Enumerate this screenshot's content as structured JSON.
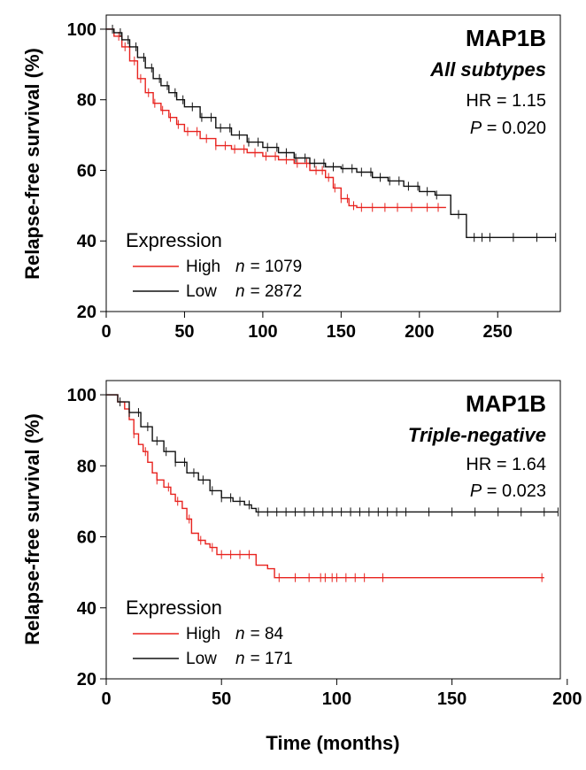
{
  "x_axis_label": "Time (months)",
  "chart_data": [
    {
      "type": "line",
      "gene": "MAP1B",
      "subtype": "All subtypes",
      "hr_label": "HR = 1.15",
      "p_symbol": "P",
      "p_text": " = 0.020",
      "ylabel": "Relapse-free survival (%)",
      "xlabel": "",
      "xlim": [
        0,
        290
      ],
      "ylim": [
        20,
        104
      ],
      "xticks": [
        0,
        50,
        100,
        150,
        200,
        250
      ],
      "xtick_labels": [
        "0",
        "50",
        "100",
        "150",
        "200",
        "250"
      ],
      "yticks": [
        20,
        40,
        60,
        80,
        100
      ],
      "ytick_labels": [
        "20",
        "40",
        "60",
        "80",
        "100"
      ],
      "legend_title": "Expression",
      "legend_position": "bottom-left",
      "series": [
        {
          "name": "High",
          "n_label": "= 1079",
          "color": "#e8231f",
          "x": [
            0,
            5,
            10,
            15,
            20,
            25,
            30,
            35,
            40,
            45,
            50,
            60,
            70,
            80,
            90,
            100,
            110,
            120,
            130,
            140,
            145,
            150,
            155,
            160,
            170,
            180,
            190,
            200,
            210,
            217
          ],
          "y": [
            100,
            98,
            95,
            91,
            86,
            82,
            79,
            77,
            75,
            73,
            71,
            69,
            67,
            66,
            65,
            64,
            63,
            62,
            60,
            58,
            55,
            52,
            50,
            49.5,
            49.5,
            49.5,
            49.5,
            49.5,
            49.5,
            49.5
          ],
          "censor_x": [
            8,
            12,
            18,
            22,
            27,
            31,
            36,
            41,
            46,
            52,
            58,
            64,
            70,
            76,
            82,
            88,
            95,
            102,
            108,
            115,
            122,
            128,
            134,
            138,
            142,
            146,
            150,
            154,
            158,
            163,
            170,
            178,
            186,
            195,
            205,
            212
          ]
        },
        {
          "name": "Low",
          "n_label": "= 2872",
          "color": "#111111",
          "x": [
            0,
            5,
            10,
            15,
            20,
            25,
            30,
            35,
            40,
            45,
            50,
            60,
            70,
            80,
            90,
            100,
            110,
            120,
            130,
            140,
            150,
            160,
            170,
            180,
            190,
            200,
            210,
            217,
            220,
            230,
            240,
            260,
            287
          ],
          "y": [
            100,
            99,
            97,
            95,
            92,
            89,
            86,
            84,
            82,
            80,
            78,
            75,
            72,
            70,
            68,
            66.5,
            65,
            63.5,
            62,
            61,
            60.5,
            59.5,
            58,
            57,
            55.5,
            54,
            53,
            53,
            47.5,
            41,
            41,
            41,
            41
          ],
          "censor_x": [
            4,
            9,
            14,
            19,
            24,
            29,
            34,
            39,
            44,
            49,
            55,
            61,
            67,
            73,
            79,
            85,
            91,
            97,
            103,
            109,
            115,
            121,
            127,
            133,
            139,
            145,
            151,
            157,
            163,
            169,
            175,
            181,
            187,
            193,
            199,
            205,
            211,
            225,
            235,
            240,
            245,
            260,
            275,
            287
          ]
        }
      ]
    },
    {
      "type": "line",
      "gene": "MAP1B",
      "subtype": "Triple-negative",
      "hr_label": "HR = 1.64",
      "p_symbol": "P",
      "p_text": " = 0.023",
      "ylabel": "Relapse-free survival (%)",
      "xlabel": "Time (months)",
      "xlim": [
        0,
        197
      ],
      "ylim": [
        20,
        104
      ],
      "xticks": [
        0,
        50,
        100,
        150,
        200
      ],
      "xtick_labels": [
        "0",
        "50",
        "100",
        "150",
        "200"
      ],
      "yticks": [
        20,
        40,
        60,
        80,
        100
      ],
      "ytick_labels": [
        "20",
        "40",
        "60",
        "80",
        "100"
      ],
      "legend_title": "Expression",
      "legend_position": "bottom-left",
      "series": [
        {
          "name": "High",
          "n_label": "= 84",
          "color": "#e8231f",
          "x": [
            0,
            5,
            8,
            10,
            12,
            14,
            16,
            18,
            20,
            22,
            25,
            28,
            30,
            33,
            35,
            37,
            40,
            43,
            45,
            48,
            50,
            55,
            60,
            65,
            70,
            73,
            75,
            80,
            100,
            150,
            190
          ],
          "y": [
            100,
            98,
            96,
            93,
            89,
            86,
            84,
            81,
            78,
            76,
            74,
            72,
            70,
            68,
            65,
            61,
            59,
            58,
            57,
            55,
            55,
            55,
            55,
            52,
            51,
            48.5,
            48.5,
            48.5,
            48.5,
            48.5,
            48.5
          ],
          "censor_x": [
            12,
            17,
            22,
            27,
            31,
            36,
            41,
            46,
            50,
            54,
            58,
            62,
            75,
            82,
            88,
            93,
            95,
            98,
            100,
            104,
            108,
            112,
            120,
            189
          ]
        },
        {
          "name": "Low",
          "n_label": "= 171",
          "color": "#111111",
          "x": [
            0,
            5,
            10,
            15,
            20,
            25,
            30,
            35,
            40,
            45,
            50,
            55,
            60,
            63,
            65,
            70,
            80,
            100,
            150,
            196
          ],
          "y": [
            100,
            98,
            95,
            91,
            87,
            84,
            81,
            78,
            76,
            73,
            71,
            70,
            69,
            68,
            67,
            67,
            67,
            67,
            67,
            67
          ],
          "censor_x": [
            6,
            10,
            14,
            18,
            22,
            26,
            30,
            34,
            38,
            42,
            46,
            50,
            54,
            58,
            62,
            66,
            70,
            74,
            78,
            82,
            86,
            90,
            94,
            98,
            102,
            106,
            110,
            114,
            118,
            122,
            126,
            130,
            140,
            150,
            160,
            170,
            180,
            190,
            196
          ]
        }
      ]
    }
  ]
}
